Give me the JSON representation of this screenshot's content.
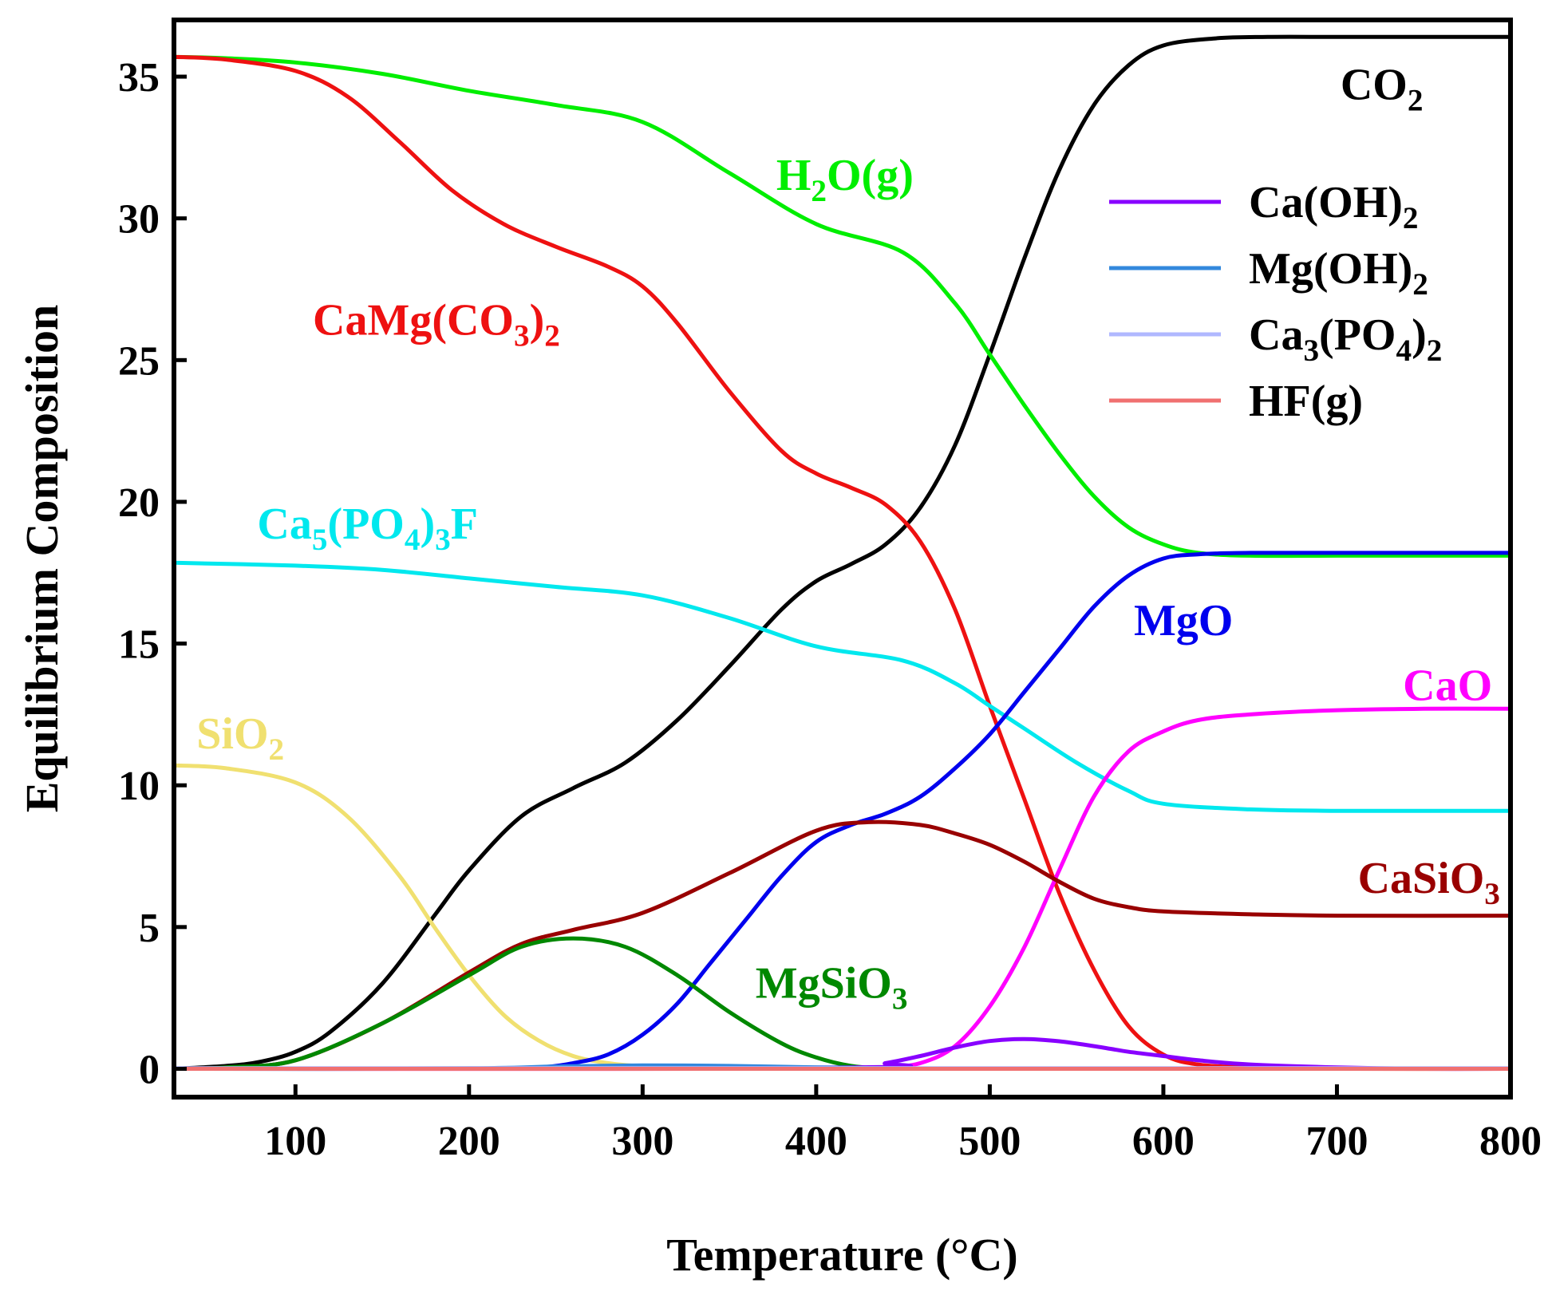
{
  "chart_data": {
    "type": "line",
    "title": "",
    "xlabel": "Temperature (°C)",
    "ylabel": "Equilibrium Composition",
    "xlim": [
      30,
      800
    ],
    "ylim": [
      -1,
      37
    ],
    "xticks": [
      100,
      200,
      300,
      400,
      500,
      600,
      700,
      800
    ],
    "yticks": [
      0,
      5,
      10,
      15,
      20,
      25,
      30,
      35
    ],
    "grid": false,
    "legend_position": "top-right",
    "series": [
      {
        "name": "CO2",
        "label_parts": [
          [
            "CO",
            ""
          ],
          [
            "2",
            "sub"
          ]
        ],
        "color": "#000000",
        "legend": false,
        "label_at": [
          702,
          34.2
        ],
        "x": [
          30,
          60,
          80,
          100,
          120,
          150,
          180,
          200,
          230,
          260,
          290,
          320,
          350,
          380,
          400,
          420,
          440,
          460,
          480,
          500,
          520,
          540,
          560,
          580,
          600,
          630,
          660,
          700,
          750,
          800
        ],
        "y": [
          0,
          0.1,
          0.25,
          0.6,
          1.3,
          3.0,
          5.4,
          7.0,
          8.9,
          9.9,
          10.8,
          12.3,
          14.2,
          16.2,
          17.2,
          17.8,
          18.5,
          19.8,
          22.0,
          25.2,
          28.6,
          31.7,
          34.0,
          35.4,
          36.1,
          36.35,
          36.4,
          36.4,
          36.4,
          36.4
        ]
      },
      {
        "name": "H2O(g)",
        "label_parts": [
          [
            "H",
            ""
          ],
          [
            "2",
            "sub"
          ],
          [
            "O(g)",
            ""
          ]
        ],
        "color": "#00ee00",
        "legend": false,
        "label_at": [
          377,
          31.0
        ],
        "x": [
          30,
          60,
          100,
          150,
          200,
          250,
          300,
          350,
          400,
          450,
          480,
          500,
          520,
          540,
          560,
          580,
          600,
          620,
          650,
          700,
          750,
          800
        ],
        "y": [
          35.7,
          35.65,
          35.5,
          35.1,
          34.5,
          34.0,
          33.4,
          31.6,
          29.8,
          28.8,
          27.0,
          25.2,
          23.4,
          21.7,
          20.2,
          19.1,
          18.5,
          18.2,
          18.1,
          18.1,
          18.1,
          18.1
        ]
      },
      {
        "name": "CaMg(CO3)2",
        "label_parts": [
          [
            "CaMg(CO",
            ""
          ],
          [
            "3",
            "sub"
          ],
          [
            ")",
            ""
          ],
          [
            "2",
            "sub"
          ]
        ],
        "color": "#ee1111",
        "legend": false,
        "label_at": [
          110,
          25.9
        ],
        "x": [
          30,
          60,
          100,
          130,
          160,
          190,
          220,
          250,
          280,
          300,
          320,
          350,
          380,
          400,
          420,
          440,
          460,
          480,
          500,
          520,
          540,
          560,
          580,
          600,
          620,
          650,
          700,
          800
        ],
        "y": [
          35.7,
          35.6,
          35.2,
          34.3,
          32.7,
          31.0,
          29.8,
          29.0,
          28.3,
          27.6,
          26.3,
          23.9,
          21.8,
          21.0,
          20.5,
          19.9,
          18.6,
          16.2,
          12.8,
          9.5,
          6.2,
          3.5,
          1.5,
          0.5,
          0.15,
          0.05,
          0.0,
          0.0
        ]
      },
      {
        "name": "Ca5(PO4)3F",
        "label_parts": [
          [
            "Ca",
            ""
          ],
          [
            "5",
            "sub"
          ],
          [
            "(PO",
            ""
          ],
          [
            "4",
            "sub"
          ],
          [
            ")",
            ""
          ],
          [
            "3",
            "sub"
          ],
          [
            "F",
            ""
          ]
        ],
        "color": "#00e8ee",
        "legend": false,
        "label_at": [
          78,
          18.7
        ],
        "x": [
          30,
          100,
          150,
          200,
          250,
          300,
          350,
          400,
          450,
          480,
          500,
          520,
          550,
          580,
          600,
          650,
          700,
          750,
          800
        ],
        "y": [
          17.85,
          17.75,
          17.6,
          17.3,
          17.0,
          16.7,
          15.9,
          14.9,
          14.4,
          13.6,
          12.8,
          12.0,
          10.8,
          9.8,
          9.35,
          9.15,
          9.1,
          9.1,
          9.1
        ]
      },
      {
        "name": "SiO2",
        "label_parts": [
          [
            "SiO",
            ""
          ],
          [
            "2",
            "sub"
          ]
        ],
        "color": "#f0e070",
        "legend": false,
        "label_at": [
          43,
          11.3
        ],
        "x": [
          30,
          60,
          100,
          130,
          160,
          180,
          200,
          220,
          240,
          260,
          280,
          300,
          320,
          350
        ],
        "y": [
          10.7,
          10.6,
          10.1,
          8.9,
          6.8,
          5.0,
          3.3,
          1.9,
          1.0,
          0.45,
          0.2,
          0.08,
          0.03,
          0.0
        ]
      },
      {
        "name": "MgO",
        "label_parts": [
          [
            "MgO",
            ""
          ]
        ],
        "color": "#0000ee",
        "legend": false,
        "label_at": [
          583,
          15.3
        ],
        "x": [
          30,
          200,
          240,
          260,
          280,
          300,
          320,
          340,
          360,
          380,
          400,
          420,
          440,
          460,
          480,
          500,
          520,
          540,
          560,
          580,
          600,
          620,
          650,
          700,
          800
        ],
        "y": [
          0,
          0,
          0.05,
          0.2,
          0.5,
          1.2,
          2.3,
          3.8,
          5.3,
          6.8,
          8.0,
          8.6,
          9.0,
          9.6,
          10.6,
          11.8,
          13.3,
          14.8,
          16.3,
          17.4,
          18.0,
          18.15,
          18.2,
          18.2,
          18.2
        ]
      },
      {
        "name": "CaO",
        "label_parts": [
          [
            "CaO",
            ""
          ]
        ],
        "color": "#ff00ff",
        "legend": false,
        "label_at": [
          738,
          13.0
        ],
        "x": [
          30,
          420,
          440,
          460,
          480,
          500,
          520,
          540,
          560,
          580,
          600,
          620,
          650,
          700,
          750,
          800
        ],
        "y": [
          0,
          0,
          0.05,
          0.2,
          0.8,
          2.2,
          4.3,
          7.0,
          9.6,
          11.2,
          11.9,
          12.3,
          12.5,
          12.65,
          12.7,
          12.7
        ]
      },
      {
        "name": "CaSiO3",
        "label_parts": [
          [
            "CaSiO",
            ""
          ],
          [
            "3",
            "sub"
          ]
        ],
        "color": "#990000",
        "legend": false,
        "label_at": [
          712,
          6.2
        ],
        "x": [
          30,
          60,
          100,
          150,
          200,
          230,
          260,
          300,
          350,
          400,
          430,
          460,
          480,
          500,
          520,
          540,
          560,
          580,
          600,
          650,
          700,
          800
        ],
        "y": [
          0,
          0.05,
          0.3,
          1.6,
          3.4,
          4.4,
          4.9,
          5.5,
          6.9,
          8.4,
          8.7,
          8.6,
          8.3,
          7.9,
          7.3,
          6.6,
          6.0,
          5.7,
          5.55,
          5.45,
          5.4,
          5.4
        ]
      },
      {
        "name": "MgSiO3",
        "label_parts": [
          [
            "MgSiO",
            ""
          ],
          [
            "3",
            "sub"
          ]
        ],
        "color": "#008800",
        "legend": false,
        "label_at": [
          365,
          2.5
        ],
        "x": [
          30,
          60,
          100,
          150,
          200,
          230,
          260,
          290,
          320,
          350,
          380,
          400,
          420,
          440
        ],
        "y": [
          0,
          0.05,
          0.3,
          1.6,
          3.3,
          4.3,
          4.6,
          4.3,
          3.3,
          2.0,
          0.9,
          0.4,
          0.1,
          0.0
        ]
      },
      {
        "name": "Ca(OH)2",
        "label_parts": [
          [
            "Ca(OH)",
            ""
          ],
          [
            "2",
            "sub"
          ]
        ],
        "color": "#8800ff",
        "legend": true,
        "x": [
          30,
          420,
          440,
          460,
          480,
          500,
          520,
          540,
          560,
          580,
          600,
          620,
          650,
          700,
          750,
          800
        ],
        "y": [
          0,
          0.05,
          0.2,
          0.45,
          0.75,
          0.98,
          1.05,
          0.97,
          0.8,
          0.6,
          0.45,
          0.3,
          0.15,
          0.05,
          0.0,
          0.0
        ]
      },
      {
        "name": "Mg(OH)2",
        "label_parts": [
          [
            "Mg(OH)",
            ""
          ],
          [
            "2",
            "sub"
          ]
        ],
        "color": "#3388dd",
        "legend": true,
        "x": [
          30,
          200,
          250,
          300,
          350,
          400,
          450,
          500,
          800
        ],
        "y": [
          0,
          0.02,
          0.08,
          0.12,
          0.1,
          0.05,
          0.01,
          0,
          0
        ]
      },
      {
        "name": "Ca3(PO4)2",
        "label_parts": [
          [
            "Ca",
            ""
          ],
          [
            "3",
            "sub"
          ],
          [
            "(PO",
            ""
          ],
          [
            "4",
            "sub"
          ],
          [
            ")",
            ""
          ],
          [
            "2",
            "sub"
          ]
        ],
        "color": "#b0b8ff",
        "legend": true,
        "x": [
          30,
          800
        ],
        "y": [
          0.02,
          0.02
        ]
      },
      {
        "name": "HF(g)",
        "label_parts": [
          [
            "HF(g)",
            ""
          ]
        ],
        "color": "#f07070",
        "legend": true,
        "x": [
          30,
          800
        ],
        "y": [
          0.0,
          0.0
        ]
      }
    ]
  }
}
